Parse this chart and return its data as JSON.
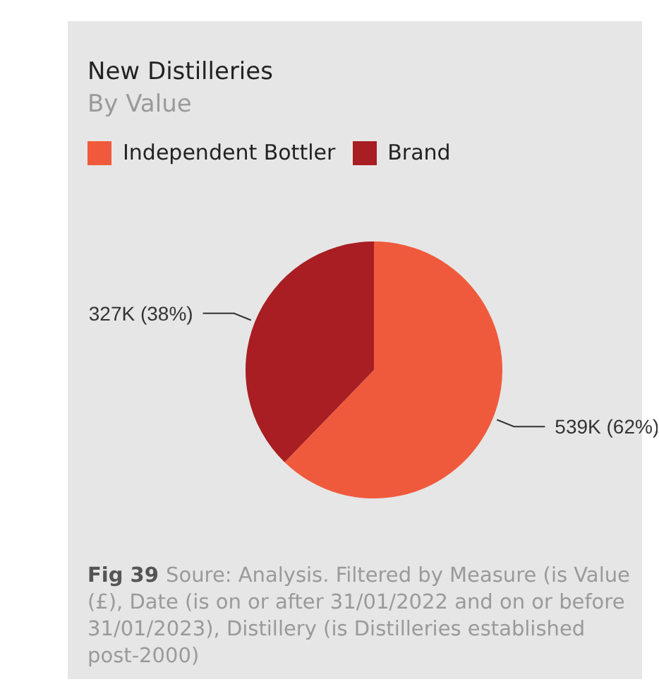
{
  "chart_data": {
    "type": "pie",
    "title": "New Distilleries",
    "subtitle": "By Value",
    "categories": [
      "Independent Bottler",
      "Brand"
    ],
    "values": [
      539000,
      327000
    ],
    "colors": [
      "#f05a3c",
      "#a81e22"
    ],
    "value_labels": [
      "539K (62%)",
      "327K (38%)"
    ],
    "legend": "top left",
    "annotations": [
      "Fig 39",
      "Soure: Analysis. Filtered by Measure (is Value (£), Date (is on or after 31/01/2022 and on or before 31/01/2023), Distillery (is Distilleries established post-2000)"
    ]
  }
}
